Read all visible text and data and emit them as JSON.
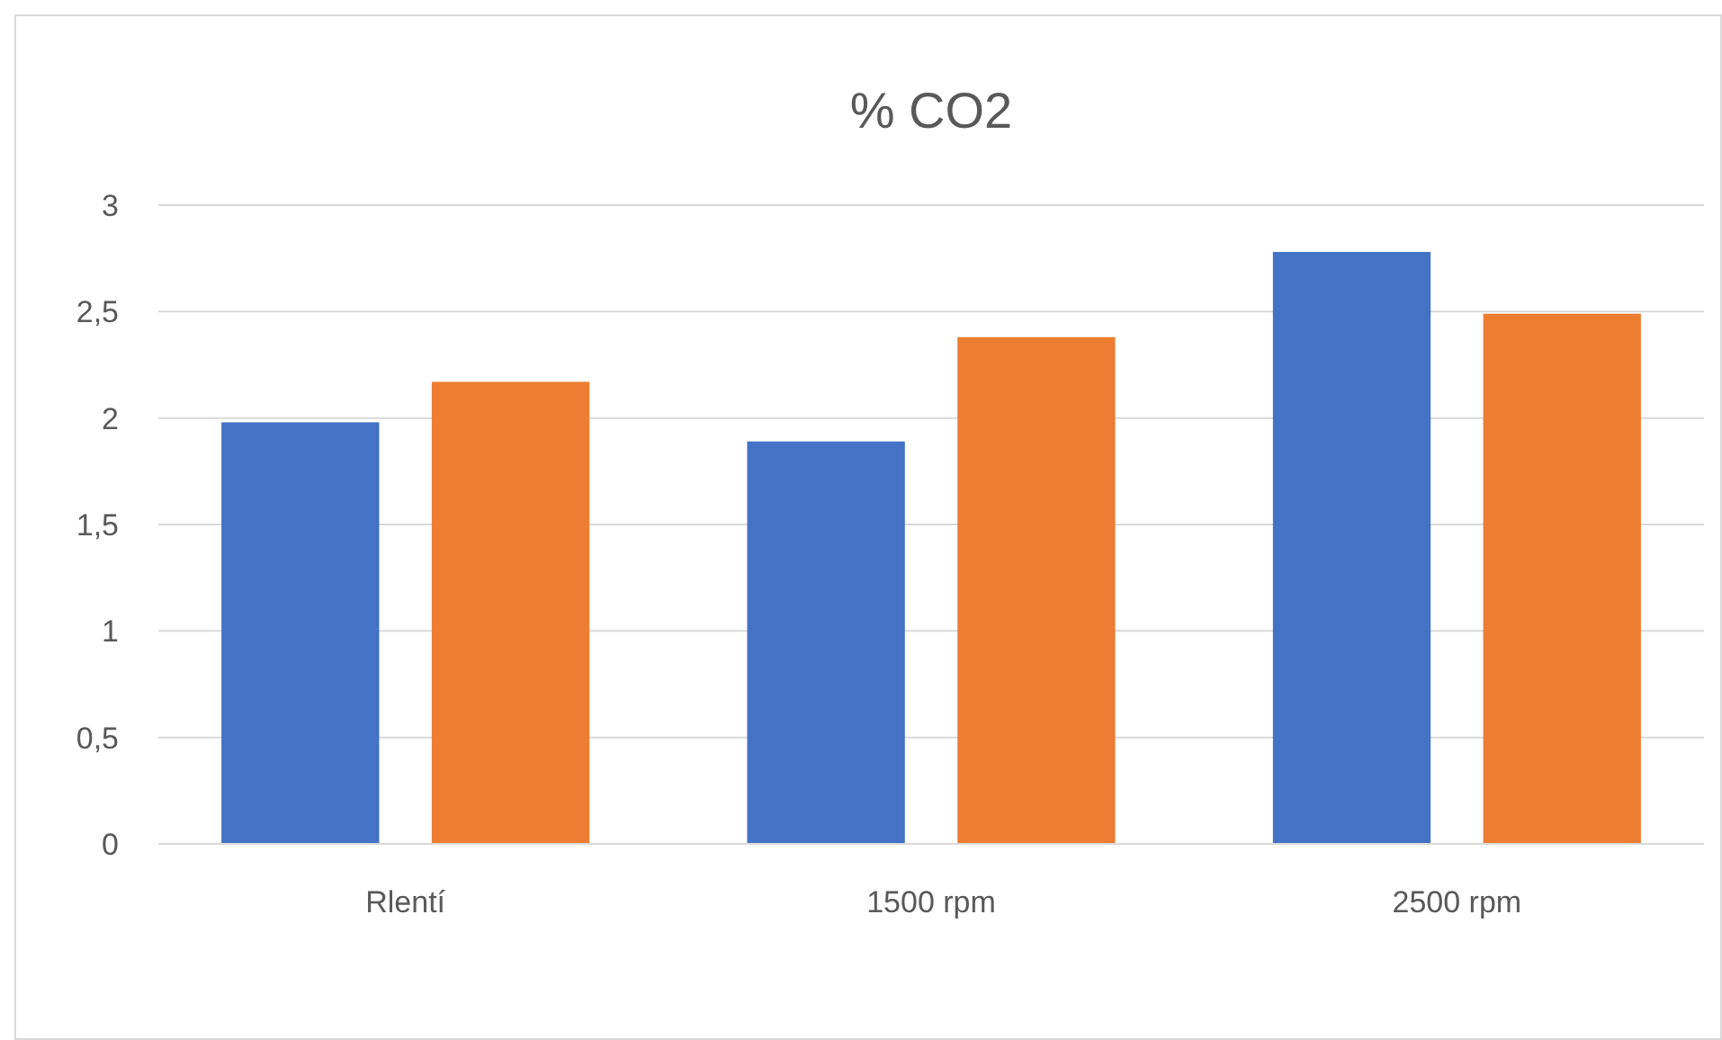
{
  "chart_data": {
    "type": "bar",
    "title": "% CO2",
    "categories": [
      "Rlentí",
      "1500 rpm",
      "2500 rpm"
    ],
    "series": [
      {
        "color": "#4472c4",
        "values": [
          1.98,
          1.89,
          2.78
        ]
      },
      {
        "color": "#ed7d31",
        "values": [
          2.17,
          2.38,
          2.49
        ]
      }
    ],
    "ylim": [
      0,
      3
    ],
    "yticks": [
      0,
      {
        "value": 0.5,
        "label": "0,5"
      },
      1,
      {
        "value": 1.5,
        "label": "1,5"
      },
      2,
      {
        "value": 2.5,
        "label": "2,5"
      },
      3
    ],
    "grid": "y"
  }
}
